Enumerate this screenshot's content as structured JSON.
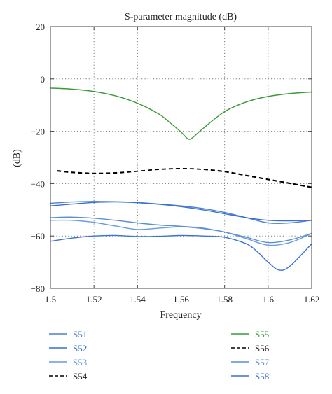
{
  "chart_data": {
    "type": "line",
    "title": "S-parameter magnitude (dB)",
    "xlabel": "Frequency",
    "ylabel": "(dB)",
    "xlim": [
      1.5,
      1.62
    ],
    "ylim": [
      -80,
      20
    ],
    "x_ticks": [
      "1.5",
      "1.52",
      "1.54",
      "1.56",
      "1.58",
      "1.6",
      "1.62"
    ],
    "y_ticks": [
      "20",
      "0",
      "−20",
      "−40",
      "−60",
      "−80"
    ],
    "grid": "dotted",
    "legend_position": "bottom",
    "series": [
      {
        "name": "S51",
        "color": "#4a7fd4",
        "dash": "solid",
        "x": [
          1.5,
          1.51,
          1.52,
          1.53,
          1.54,
          1.55,
          1.56,
          1.57,
          1.58,
          1.59,
          1.6,
          1.61,
          1.62
        ],
        "y": [
          -47.5,
          -47.0,
          -46.8,
          -46.9,
          -47.2,
          -47.8,
          -48.5,
          -49.5,
          -51.0,
          -53.0,
          -55.0,
          -55.0,
          -54.0
        ]
      },
      {
        "name": "S52",
        "color": "#3a6fd0",
        "dash": "solid",
        "x": [
          1.5,
          1.51,
          1.52,
          1.53,
          1.54,
          1.55,
          1.56,
          1.57,
          1.58,
          1.59,
          1.6,
          1.61,
          1.62
        ],
        "y": [
          -48.5,
          -47.8,
          -47.2,
          -47.0,
          -47.3,
          -47.9,
          -48.8,
          -50.0,
          -51.5,
          -53.0,
          -54.0,
          -54.2,
          -54.0
        ]
      },
      {
        "name": "S53",
        "color": "#6a9ae0",
        "dash": "solid",
        "x": [
          1.5,
          1.51,
          1.52,
          1.53,
          1.54,
          1.55,
          1.56,
          1.57,
          1.58,
          1.59,
          1.6,
          1.61,
          1.62
        ],
        "y": [
          -54.0,
          -54.0,
          -54.8,
          -56.2,
          -57.5,
          -57.0,
          -56.5,
          -57.2,
          -58.5,
          -61.0,
          -63.5,
          -62.5,
          -59.0
        ]
      },
      {
        "name": "S54",
        "color": "#000000",
        "dash": "dashed",
        "x": [
          1.503,
          1.51,
          1.52,
          1.53,
          1.54,
          1.55,
          1.56,
          1.57,
          1.58,
          1.59,
          1.6,
          1.61,
          1.62
        ],
        "y": [
          -35.2,
          -35.8,
          -36.2,
          -36.0,
          -35.3,
          -34.6,
          -34.3,
          -34.6,
          -35.5,
          -37.0,
          -38.5,
          -40.0,
          -41.5
        ]
      },
      {
        "name": "S55",
        "color": "#3a9a3a",
        "dash": "solid",
        "x": [
          1.5,
          1.51,
          1.52,
          1.53,
          1.54,
          1.55,
          1.555,
          1.56,
          1.563,
          1.565,
          1.57,
          1.58,
          1.59,
          1.6,
          1.61,
          1.62
        ],
        "y": [
          -3.5,
          -3.9,
          -4.8,
          -6.5,
          -9.3,
          -13.5,
          -16.8,
          -20.3,
          -22.8,
          -22.6,
          -19.0,
          -12.5,
          -8.8,
          -6.7,
          -5.6,
          -5.0
        ]
      },
      {
        "name": "S56",
        "color": "#000000",
        "dash": "dashed",
        "x": [
          1.503,
          1.51,
          1.52,
          1.53,
          1.54,
          1.55,
          1.56,
          1.57,
          1.58,
          1.59,
          1.6,
          1.61,
          1.62
        ],
        "y": [
          -35.0,
          -35.6,
          -36.0,
          -35.8,
          -35.2,
          -34.5,
          -34.2,
          -34.5,
          -35.3,
          -36.8,
          -38.3,
          -39.8,
          -41.3
        ]
      },
      {
        "name": "S57",
        "color": "#5a8fd8",
        "dash": "solid",
        "x": [
          1.5,
          1.51,
          1.52,
          1.53,
          1.54,
          1.55,
          1.56,
          1.57,
          1.58,
          1.59,
          1.6,
          1.61,
          1.62
        ],
        "y": [
          -53.0,
          -52.8,
          -53.2,
          -54.0,
          -55.0,
          -55.8,
          -56.3,
          -57.0,
          -58.5,
          -60.5,
          -62.5,
          -61.5,
          -59.0
        ]
      },
      {
        "name": "S58",
        "color": "#3a72d8",
        "dash": "solid",
        "x": [
          1.5,
          1.51,
          1.52,
          1.53,
          1.54,
          1.55,
          1.56,
          1.57,
          1.58,
          1.59,
          1.595,
          1.6,
          1.605,
          1.61,
          1.62
        ],
        "y": [
          -62.0,
          -60.8,
          -60.0,
          -59.8,
          -60.2,
          -60.1,
          -59.8,
          -60.0,
          -60.5,
          -63.0,
          -66.0,
          -70.0,
          -73.0,
          -71.5,
          -63.0
        ]
      }
    ]
  }
}
